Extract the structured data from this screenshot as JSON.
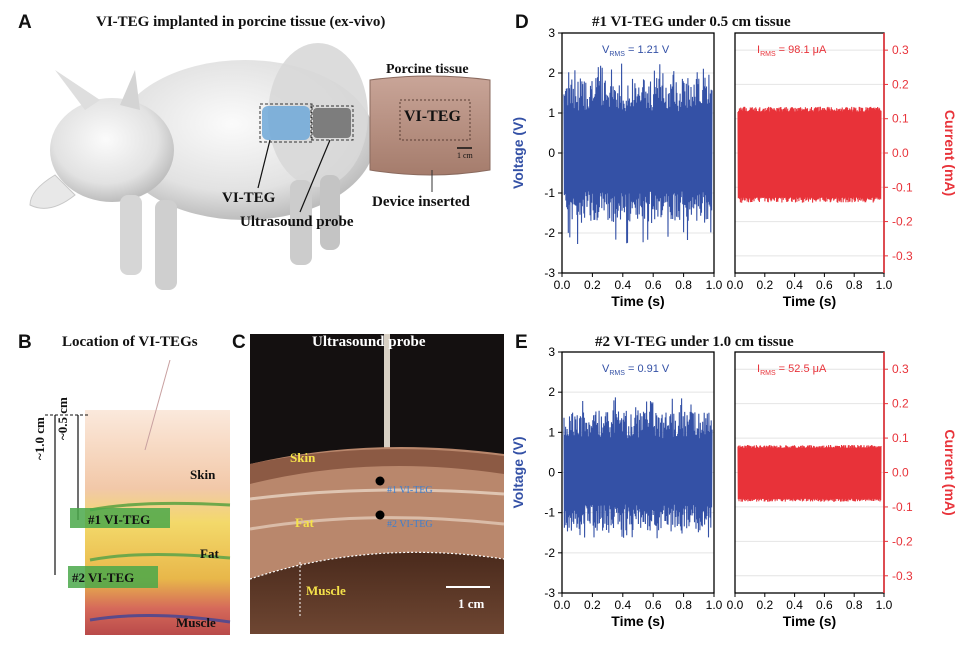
{
  "panels": {
    "A": {
      "letter": "A",
      "title": "VI-TEG implanted in porcine tissue (ex-vivo)",
      "tissue_title": "Porcine tissue",
      "tissue_label": "VI-TEG",
      "scale": "1 cm",
      "label_vi_teg": "VI-TEG",
      "label_probe": "Ultrasound probe",
      "label_inserted": "Device inserted"
    },
    "B": {
      "letter": "B",
      "title": "Location of VI-TEGs",
      "depth_outer": "~1.0 cm",
      "depth_inner": "~0.5 cm",
      "device1": "#1 VI-TEG",
      "device2": "#2 VI-TEG",
      "skin": "Skin",
      "fat": "Fat",
      "muscle": "Muscle"
    },
    "C": {
      "letter": "C",
      "probe": "Ultrasound probe",
      "skin": "Skin",
      "fat": "Fat",
      "muscle": "Muscle",
      "device1": "#1 VI-TEG",
      "device2": "#2 VI-TEG",
      "scale": "1 cm"
    },
    "D": {
      "letter": "D",
      "title": "#1 VI-TEG under 0.5 cm tissue"
    },
    "E": {
      "letter": "E",
      "title": "#2 VI-TEG under 1.0 cm tissue"
    }
  },
  "chart_data": [
    {
      "panel": "D",
      "type": "line",
      "title": "#1 VI-TEG under 0.5 cm tissue",
      "left": {
        "xlabel": "Time (s)",
        "ylabel": "Voltage (V)",
        "xlim": [
          0,
          1
        ],
        "ylim": [
          -3,
          3
        ],
        "xticks": [
          "0.0",
          "0.2",
          "0.4",
          "0.6",
          "0.8",
          "1.0"
        ],
        "yticks": [
          "-3",
          "-2",
          "-1",
          "0",
          "1",
          "2",
          "3"
        ],
        "annotation_main": "V",
        "annotation_sub": "RMS",
        "annotation_value": " = 1.21 V",
        "color": "#3451a6",
        "envelope_pos": 1.9,
        "envelope_neg": -1.75,
        "peak_pos": 2.3,
        "peak_neg": -2.3
      },
      "right": {
        "xlabel": "Time (s)",
        "ylabel": "Current (mA)",
        "xlim": [
          0,
          1
        ],
        "ylim": [
          -0.35,
          0.35
        ],
        "xticks": [
          "0.0",
          "0.2",
          "0.4",
          "0.6",
          "0.8",
          "1.0"
        ],
        "yticks": [
          "0.3",
          "0.2",
          "0.1",
          "0.0",
          "-0.1",
          "-0.2",
          "-0.3"
        ],
        "annotation_main": "I",
        "annotation_sub": "RMS",
        "annotation_value": " = 98.1 μA",
        "color": "#e8333a",
        "envelope_pos": 0.135,
        "envelope_neg": -0.145
      }
    },
    {
      "panel": "E",
      "type": "line",
      "title": "#2 VI-TEG under 1.0 cm tissue",
      "left": {
        "xlabel": "Time (s)",
        "ylabel": "Voltage (V)",
        "xlim": [
          0,
          1
        ],
        "ylim": [
          -3,
          3
        ],
        "xticks": [
          "0.0",
          "0.2",
          "0.4",
          "0.6",
          "0.8",
          "1.0"
        ],
        "yticks": [
          "-3",
          "-2",
          "-1",
          "0",
          "1",
          "2",
          "3"
        ],
        "annotation_main": "V",
        "annotation_sub": "RMS",
        "annotation_value": " = 0.91 V",
        "color": "#3451a6",
        "envelope_pos": 1.55,
        "envelope_neg": -1.45,
        "peak_pos": 1.9,
        "peak_neg": -1.7
      },
      "right": {
        "xlabel": "Time (s)",
        "ylabel": "Current (mA)",
        "xlim": [
          0,
          1
        ],
        "ylim": [
          -0.35,
          0.35
        ],
        "xticks": [
          "0.0",
          "0.2",
          "0.4",
          "0.6",
          "0.8",
          "1.0"
        ],
        "yticks": [
          "0.3",
          "0.2",
          "0.1",
          "0.0",
          "-0.1",
          "-0.2",
          "-0.3"
        ],
        "annotation_main": "I",
        "annotation_sub": "RMS",
        "annotation_value": " = 52.5 μA",
        "color": "#e8333a",
        "envelope_pos": 0.08,
        "envelope_neg": -0.085
      }
    }
  ]
}
